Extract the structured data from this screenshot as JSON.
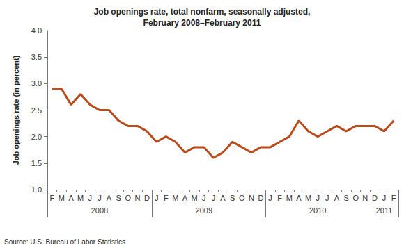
{
  "chart_data": {
    "type": "line",
    "title": "Job openings rate, total nonfarm, seasonally adjusted,\nFebruary 2008–February 2011",
    "y_label": "Job openings rate (in percent)",
    "source": "Source: U.S. Bureau of Labor Statistics",
    "categories": [
      "F",
      "M",
      "A",
      "M",
      "J",
      "J",
      "A",
      "S",
      "O",
      "N",
      "D",
      "J",
      "F",
      "M",
      "A",
      "M",
      "J",
      "J",
      "A",
      "S",
      "O",
      "N",
      "D",
      "J",
      "F",
      "M",
      "A",
      "M",
      "J",
      "J",
      "A",
      "S",
      "O",
      "N",
      "D",
      "J",
      "F"
    ],
    "years": [
      "2008",
      "2008",
      "2008",
      "2008",
      "2008",
      "2008",
      "2008",
      "2008",
      "2008",
      "2008",
      "2008",
      "2009",
      "2009",
      "2009",
      "2009",
      "2009",
      "2009",
      "2009",
      "2009",
      "2009",
      "2009",
      "2009",
      "2009",
      "2010",
      "2010",
      "2010",
      "2010",
      "2010",
      "2010",
      "2010",
      "2010",
      "2010",
      "2010",
      "2010",
      "2010",
      "2011",
      "2011"
    ],
    "values": [
      2.9,
      2.9,
      2.6,
      2.8,
      2.6,
      2.5,
      2.5,
      2.3,
      2.2,
      2.2,
      2.1,
      1.9,
      2.0,
      1.9,
      1.7,
      1.8,
      1.8,
      1.6,
      1.7,
      1.9,
      1.8,
      1.7,
      1.8,
      1.8,
      1.9,
      2.0,
      2.3,
      2.1,
      2.0,
      2.1,
      2.2,
      2.1,
      2.2,
      2.2,
      2.2,
      2.1,
      2.3
    ],
    "color": "#b84a1b",
    "ylim": [
      1.0,
      4.0
    ],
    "yticks": [
      {
        "value": 1,
        "label": "1.0"
      },
      {
        "value": 1.5,
        "label": "1.5"
      },
      {
        "value": 2,
        "label": "2.0"
      },
      {
        "value": 2.5,
        "label": "2.5"
      },
      {
        "value": 3,
        "label": "3.0"
      },
      {
        "value": 3.5,
        "label": "3.5"
      },
      {
        "value": 4,
        "label": "4.0"
      }
    ],
    "grid": false
  }
}
